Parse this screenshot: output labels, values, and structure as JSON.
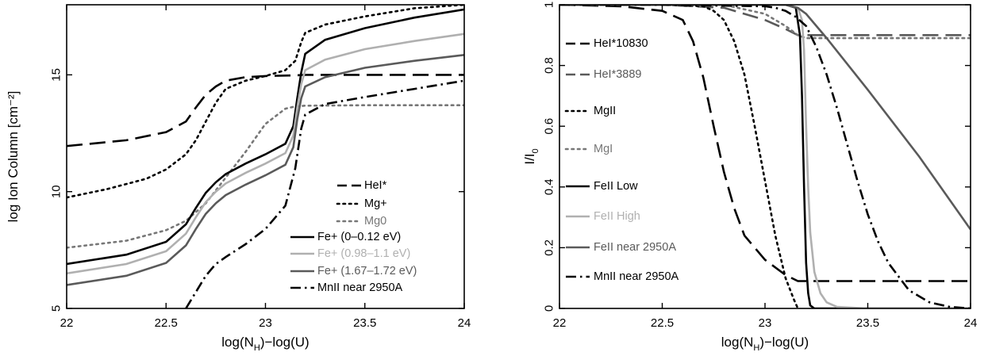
{
  "chart_data": [
    {
      "type": "line",
      "xlabel": "log(N_H)−log(U)",
      "xlabel_main": "log(N",
      "xlabel_sub": "H",
      "xlabel_tail": ")−log(U)",
      "ylabel": "log Ion Column [cm⁻²]",
      "xlim": [
        22,
        24
      ],
      "ylim": [
        5,
        18
      ],
      "xticks": [
        22,
        22.5,
        23,
        23.5,
        24
      ],
      "xtick_labels": [
        "22",
        "22.5",
        "23",
        "23.5",
        "24"
      ],
      "yticks": [
        5,
        10,
        15
      ],
      "ytick_labels": [
        "5",
        "10",
        "15"
      ],
      "legend_placement": "lower-right",
      "series": [
        {
          "name": "HeI*",
          "color": "#000000",
          "dash": "long-dash",
          "x": [
            22,
            22.3,
            22.5,
            22.6,
            22.65,
            22.7,
            22.75,
            22.8,
            22.9,
            23,
            23.1,
            23.16,
            23.2,
            23.5,
            24
          ],
          "y": [
            11.95,
            12.2,
            12.55,
            13.0,
            13.6,
            14.15,
            14.5,
            14.75,
            14.9,
            14.95,
            14.97,
            14.98,
            15.0,
            15.0,
            15.0
          ]
        },
        {
          "name": "Mg+",
          "color": "#000000",
          "dash": "dot",
          "x": [
            22,
            22.2,
            22.4,
            22.5,
            22.6,
            22.65,
            22.7,
            22.75,
            22.8,
            22.9,
            23,
            23.1,
            23.15,
            23.18,
            23.2,
            23.3,
            23.5,
            23.75,
            24
          ],
          "y": [
            9.75,
            10.1,
            10.55,
            10.95,
            11.6,
            12.2,
            13.0,
            13.8,
            14.4,
            14.75,
            14.95,
            15.2,
            15.6,
            16.4,
            16.8,
            17.15,
            17.5,
            17.85,
            18.0
          ]
        },
        {
          "name": "Mg0",
          "color": "#777777",
          "dash": "dot",
          "x": [
            22,
            22.3,
            22.5,
            22.6,
            22.7,
            22.8,
            22.9,
            23,
            23.1,
            23.15,
            23.2,
            23.5,
            24
          ],
          "y": [
            7.6,
            7.9,
            8.35,
            8.75,
            9.5,
            10.6,
            11.7,
            12.9,
            13.55,
            13.65,
            13.68,
            13.7,
            13.7
          ]
        },
        {
          "name": "Fe+ (0–0.12 eV)",
          "color": "#000000",
          "dash": "solid",
          "x": [
            22,
            22.3,
            22.5,
            22.6,
            22.65,
            22.7,
            22.75,
            22.8,
            22.9,
            23,
            23.1,
            23.14,
            23.16,
            23.18,
            23.2,
            23.3,
            23.5,
            23.75,
            24
          ],
          "y": [
            6.9,
            7.3,
            7.85,
            8.6,
            9.3,
            9.95,
            10.4,
            10.75,
            11.2,
            11.6,
            12.05,
            12.8,
            14.0,
            15.1,
            15.9,
            16.5,
            17.0,
            17.45,
            17.8
          ]
        },
        {
          "name": "Fe+ (0.98–1.1 eV)",
          "color": "#b0b0b0",
          "dash": "solid",
          "x": [
            22,
            22.3,
            22.5,
            22.6,
            22.65,
            22.7,
            22.75,
            22.8,
            22.9,
            23,
            23.1,
            23.14,
            23.16,
            23.18,
            23.2,
            23.3,
            23.5,
            23.75,
            24
          ],
          "y": [
            6.5,
            6.9,
            7.45,
            8.2,
            8.9,
            9.55,
            10.0,
            10.35,
            10.8,
            11.2,
            11.65,
            12.4,
            13.6,
            14.6,
            15.2,
            15.65,
            16.1,
            16.45,
            16.75
          ]
        },
        {
          "name": "Fe+ (1.67–1.72 eV)",
          "color": "#5a5a5a",
          "dash": "solid",
          "x": [
            22,
            22.3,
            22.5,
            22.6,
            22.65,
            22.7,
            22.75,
            22.8,
            22.9,
            23,
            23.1,
            23.14,
            23.16,
            23.18,
            23.2,
            23.3,
            23.5,
            23.75,
            24
          ],
          "y": [
            6.0,
            6.4,
            6.95,
            7.7,
            8.4,
            9.05,
            9.5,
            9.85,
            10.3,
            10.7,
            11.15,
            11.9,
            13.1,
            14.0,
            14.5,
            14.9,
            15.3,
            15.6,
            15.85
          ]
        },
        {
          "name": "MnII near 2950A",
          "color": "#000000",
          "dash": "dash-dot",
          "x": [
            22.6,
            22.65,
            22.7,
            22.75,
            22.8,
            22.9,
            23,
            23.1,
            23.15,
            23.18,
            23.2,
            23.3,
            23.5,
            23.75,
            24
          ],
          "y": [
            5.0,
            5.7,
            6.4,
            6.9,
            7.2,
            7.75,
            8.4,
            9.4,
            11.0,
            12.7,
            13.3,
            13.75,
            14.05,
            14.4,
            14.75
          ]
        }
      ]
    },
    {
      "type": "line",
      "xlabel": "log(N_H)−log(U)",
      "xlabel_main": "log(N",
      "xlabel_sub": "H",
      "xlabel_tail": ")−log(U)",
      "ylabel": "I/I₀",
      "ylabel_main": "I/I",
      "ylabel_sub": "0",
      "xlim": [
        22,
        24
      ],
      "ylim": [
        0,
        1
      ],
      "xticks": [
        22,
        22.5,
        23,
        23.5,
        24
      ],
      "xtick_labels": [
        "22",
        "22.5",
        "23",
        "23.5",
        "24"
      ],
      "yticks": [
        0,
        0.2,
        0.4,
        0.6,
        0.8,
        1
      ],
      "ytick_labels": [
        "0",
        "0.2",
        "0.4",
        "0.6",
        "0.8",
        "1"
      ],
      "legend_placement": "left",
      "series": [
        {
          "name": "HeI*10830",
          "color": "#000000",
          "dash": "long-dash",
          "x": [
            22,
            22.3,
            22.5,
            22.6,
            22.65,
            22.7,
            22.75,
            22.8,
            22.85,
            22.9,
            23,
            23.1,
            23.16,
            24
          ],
          "y": [
            1.0,
            0.995,
            0.98,
            0.95,
            0.88,
            0.76,
            0.6,
            0.45,
            0.33,
            0.24,
            0.16,
            0.11,
            0.09,
            0.09
          ]
        },
        {
          "name": "HeI*3889",
          "color": "#5a5a5a",
          "dash": "long-dash",
          "x": [
            22,
            22.5,
            22.8,
            22.9,
            23,
            23.1,
            23.16,
            23.2,
            24
          ],
          "y": [
            1.0,
            1.0,
            0.99,
            0.97,
            0.95,
            0.92,
            0.9,
            0.9,
            0.9
          ]
        },
        {
          "name": "MgII",
          "color": "#000000",
          "dash": "dot",
          "x": [
            22,
            22.5,
            22.7,
            22.75,
            22.8,
            22.85,
            22.9,
            22.95,
            23,
            23.05,
            23.1,
            23.14,
            23.16
          ],
          "y": [
            1.0,
            1.0,
            0.995,
            0.98,
            0.95,
            0.88,
            0.77,
            0.6,
            0.42,
            0.24,
            0.1,
            0.03,
            0.0
          ]
        },
        {
          "name": "MgI",
          "color": "#777777",
          "dash": "dot",
          "x": [
            22,
            22.5,
            22.8,
            23,
            23.1,
            23.16,
            23.2,
            24
          ],
          "y": [
            1.0,
            1.0,
            1.0,
            0.97,
            0.93,
            0.9,
            0.89,
            0.89
          ]
        },
        {
          "name": "FeII Low",
          "color": "#000000",
          "dash": "solid",
          "x": [
            22,
            22.5,
            23,
            23.1,
            23.15,
            23.17,
            23.18,
            23.19,
            23.2,
            23.21,
            23.22,
            23.24,
            23.3,
            24
          ],
          "y": [
            1.0,
            1.0,
            1.0,
            1.0,
            0.99,
            0.9,
            0.7,
            0.4,
            0.15,
            0.05,
            0.01,
            0.0,
            0.0,
            0.0
          ]
        },
        {
          "name": "FeII High",
          "color": "#b0b0b0",
          "dash": "solid",
          "x": [
            22,
            22.5,
            23,
            23.1,
            23.16,
            23.18,
            23.19,
            23.2,
            23.21,
            23.22,
            23.24,
            23.27,
            23.3,
            23.35,
            23.5,
            24
          ],
          "y": [
            1.0,
            1.0,
            1.0,
            1.0,
            0.99,
            0.95,
            0.85,
            0.6,
            0.4,
            0.25,
            0.12,
            0.05,
            0.02,
            0.005,
            0.0,
            0.0
          ]
        },
        {
          "name": "FeII near 2950A",
          "color": "#5a5a5a",
          "dash": "solid",
          "x": [
            22,
            22.5,
            23,
            23.1,
            23.16,
            23.2,
            23.3,
            23.5,
            23.75,
            24
          ],
          "y": [
            1.0,
            1.0,
            1.0,
            1.0,
            0.99,
            0.97,
            0.89,
            0.72,
            0.5,
            0.26
          ]
        },
        {
          "name": "MnII near 2950A",
          "color": "#000000",
          "dash": "dash-dot",
          "x": [
            22,
            22.5,
            23,
            23.05,
            23.1,
            23.15,
            23.2,
            23.25,
            23.3,
            23.35,
            23.4,
            23.45,
            23.5,
            23.55,
            23.6,
            23.7,
            23.8,
            23.9,
            24
          ],
          "y": [
            1.0,
            1.0,
            0.995,
            0.99,
            0.98,
            0.96,
            0.93,
            0.86,
            0.77,
            0.66,
            0.54,
            0.42,
            0.31,
            0.22,
            0.15,
            0.06,
            0.02,
            0.005,
            0.0
          ]
        }
      ]
    }
  ]
}
